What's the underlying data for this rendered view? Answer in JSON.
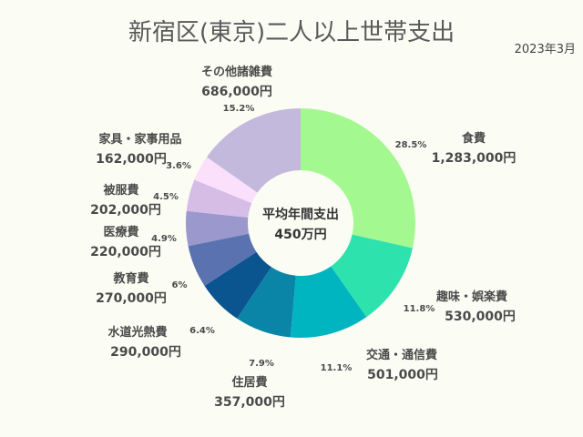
{
  "chart_data": {
    "type": "pie",
    "title": "新宿区(東京)二人以上世帯支出",
    "subtitle": "2023年3月",
    "center_label": "平均年間支出",
    "center_value": "450万円",
    "slices": [
      {
        "name": "食費",
        "amount": "1,283,000円",
        "value": 1283000,
        "percent": "28.5%",
        "color": "#a3f98f"
      },
      {
        "name": "趣味・娯楽費",
        "amount": "530,000円",
        "value": 530000,
        "percent": "11.8%",
        "color": "#2ee2ae"
      },
      {
        "name": "交通・通信費",
        "amount": "501,000円",
        "value": 501000,
        "percent": "11.1%",
        "color": "#00b4c0"
      },
      {
        "name": "住居費",
        "amount": "357,000円",
        "value": 357000,
        "percent": "7.9%",
        "color": "#0a85a8"
      },
      {
        "name": "水道光熱費",
        "amount": "290,000円",
        "value": 290000,
        "percent": "6.4%",
        "color": "#0a5590"
      },
      {
        "name": "教育費",
        "amount": "270,000円",
        "value": 270000,
        "percent": "6%",
        "color": "#5a72b0"
      },
      {
        "name": "医療費",
        "amount": "220,000円",
        "value": 220000,
        "percent": "4.9%",
        "color": "#9a98cc"
      },
      {
        "name": "被服費",
        "amount": "202,000円",
        "value": 202000,
        "percent": "4.5%",
        "color": "#d5bde6"
      },
      {
        "name": "家具・家事用品",
        "amount": "162,000円",
        "value": 162000,
        "percent": "3.6%",
        "color": "#fae0fb"
      },
      {
        "name": "その他諸雑費",
        "amount": "686,000円",
        "value": 686000,
        "percent": "15.2%",
        "color": "#c3b9dc"
      }
    ]
  }
}
